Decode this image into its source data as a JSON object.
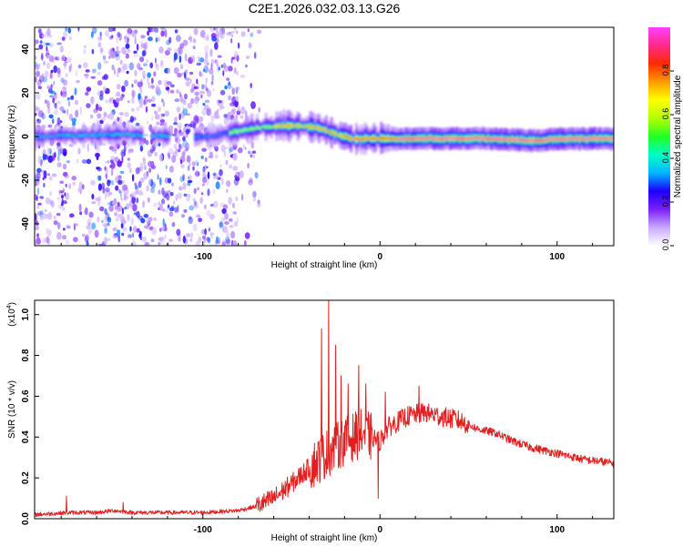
{
  "title": "C2E1.2026.032.03.13.G26",
  "colors": {
    "snr_line": "#e02020",
    "axis": "#000000"
  },
  "chart_data": [
    {
      "type": "heatmap",
      "name": "spectrogram",
      "xlabel": "Height of straight line (km)",
      "ylabel": "Frequency (Hz)",
      "xlim": [
        -195,
        132
      ],
      "ylim": [
        -50,
        50
      ],
      "xticks": [
        -100,
        0,
        100
      ],
      "yticks": [
        -40,
        -20,
        0,
        20,
        40
      ],
      "colorbar": {
        "label": "Normalized spectral amplitude",
        "range": [
          0,
          1
        ],
        "ticks": [
          "0.0",
          "0.2",
          "0.4",
          "0.6",
          "0.8"
        ],
        "colormap": [
          "#ffffff",
          "#c9a8ff",
          "#7a1fff",
          "#1b00ff",
          "#00b7ff",
          "#00ffc3",
          "#22ff22",
          "#b4ff00",
          "#ffff00",
          "#ff9a00",
          "#ff2a00",
          "#ff2a8a",
          "#ff40ff"
        ]
      },
      "ridge": {
        "description_points_km_hz": [
          [
            -195,
            0
          ],
          [
            -150,
            1
          ],
          [
            -110,
            0
          ],
          [
            -95,
            0
          ],
          [
            -85,
            2
          ],
          [
            -70,
            4
          ],
          [
            -55,
            5
          ],
          [
            -45,
            5
          ],
          [
            -35,
            4
          ],
          [
            -25,
            1
          ],
          [
            -15,
            -1
          ],
          [
            -5,
            -1
          ],
          [
            0,
            -1
          ],
          [
            10,
            -1
          ],
          [
            30,
            -1
          ],
          [
            60,
            -1
          ],
          [
            90,
            -2
          ],
          [
            100,
            -1
          ],
          [
            132,
            -1
          ]
        ]
      }
    },
    {
      "type": "line",
      "name": "snr",
      "xlabel": "Height of straight line (km)",
      "ylabel": "SNR (10 * v/v)",
      "y_multiplier": "(x10",
      "y_multiplier_exp": "4",
      "y_multiplier_close": ")",
      "xlim": [
        -195,
        132
      ],
      "ylim": [
        0,
        1.07
      ],
      "xticks": [
        -100,
        0,
        100
      ],
      "yticks": [
        "0.0",
        "0.2",
        "0.4",
        "0.6",
        "0.8",
        "1.0"
      ],
      "envelope_km_value": [
        [
          -195,
          0.02
        ],
        [
          -175,
          0.03
        ],
        [
          -160,
          0.03
        ],
        [
          -150,
          0.04
        ],
        [
          -140,
          0.03
        ],
        [
          -120,
          0.03
        ],
        [
          -100,
          0.03
        ],
        [
          -80,
          0.04
        ],
        [
          -70,
          0.06
        ],
        [
          -60,
          0.1
        ],
        [
          -50,
          0.17
        ],
        [
          -40,
          0.25
        ],
        [
          -30,
          0.32
        ],
        [
          -20,
          0.38
        ],
        [
          -10,
          0.42
        ],
        [
          0,
          0.38
        ],
        [
          5,
          0.45
        ],
        [
          15,
          0.5
        ],
        [
          25,
          0.52
        ],
        [
          35,
          0.5
        ],
        [
          45,
          0.48
        ],
        [
          55,
          0.44
        ],
        [
          65,
          0.42
        ],
        [
          75,
          0.38
        ],
        [
          85,
          0.35
        ],
        [
          95,
          0.33
        ],
        [
          105,
          0.31
        ],
        [
          115,
          0.29
        ],
        [
          125,
          0.28
        ],
        [
          132,
          0.27
        ]
      ],
      "spikes_km_value": [
        [
          -177,
          0.11
        ],
        [
          -145,
          0.08
        ],
        [
          -33,
          0.93
        ],
        [
          -29,
          1.07
        ],
        [
          -25,
          0.85
        ],
        [
          -22,
          0.7
        ],
        [
          -18,
          0.66
        ],
        [
          -12,
          0.75
        ],
        [
          -8,
          0.66
        ],
        [
          -1,
          0.1
        ],
        [
          3,
          0.62
        ],
        [
          22,
          0.65
        ],
        [
          42,
          0.53
        ]
      ]
    }
  ]
}
